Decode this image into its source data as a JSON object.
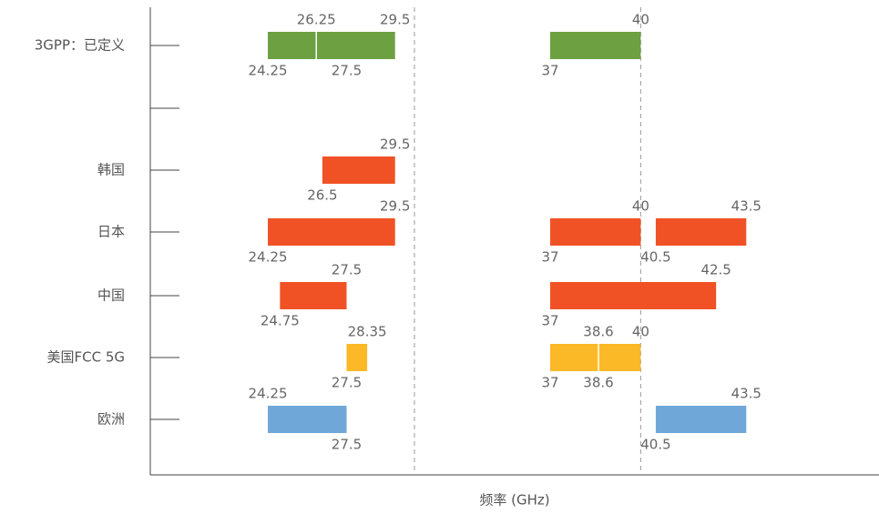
{
  "chart_data": {
    "type": "range-bar",
    "x_label": "频率 (GHz)",
    "x_segments": [
      [
        19.4,
        30.3
      ],
      [
        32.5,
        47.9
      ]
    ],
    "reference_line": 40,
    "categories": [
      "3GPP：已定义",
      null,
      "韩国",
      "日本",
      "中国",
      "美国FCC 5G",
      "欧洲"
    ],
    "rows": [
      {
        "bars": [
          {
            "start": 24.25,
            "end": 29.5,
            "color": "#6ca040",
            "dividers": [
              26.25
            ]
          },
          {
            "start": 37,
            "end": 40,
            "color": "#6ca040"
          }
        ],
        "labels": [
          {
            "value": 26.25,
            "pos": "above"
          },
          {
            "value": 29.5,
            "pos": "above"
          },
          {
            "value": 40,
            "pos": "above"
          },
          {
            "value": 24.25,
            "pos": "below"
          },
          {
            "value": 27.5,
            "pos": "below"
          },
          {
            "value": 37,
            "pos": "below"
          }
        ]
      },
      {
        "bars": [],
        "labels": []
      },
      {
        "bars": [
          {
            "start": 26.5,
            "end": 29.5,
            "color": "#f05225"
          }
        ],
        "labels": [
          {
            "value": 29.5,
            "pos": "above"
          },
          {
            "value": 26.5,
            "pos": "below"
          }
        ]
      },
      {
        "bars": [
          {
            "start": 24.25,
            "end": 29.5,
            "color": "#f05225"
          },
          {
            "start": 37,
            "end": 40,
            "color": "#f05225"
          },
          {
            "start": 40.5,
            "end": 43.5,
            "color": "#f05225"
          }
        ],
        "labels": [
          {
            "value": 29.5,
            "pos": "above"
          },
          {
            "value": 40,
            "pos": "above"
          },
          {
            "value": 43.5,
            "pos": "above"
          },
          {
            "value": 24.25,
            "pos": "below"
          },
          {
            "value": 37,
            "pos": "below"
          },
          {
            "value": 40.5,
            "pos": "below"
          }
        ]
      },
      {
        "bars": [
          {
            "start": 24.75,
            "end": 27.5,
            "color": "#f05225"
          },
          {
            "start": 37,
            "end": 42.5,
            "color": "#f05225"
          }
        ],
        "labels": [
          {
            "value": 27.5,
            "pos": "above"
          },
          {
            "value": 42.5,
            "pos": "above"
          },
          {
            "value": 24.75,
            "pos": "below"
          },
          {
            "value": 37,
            "pos": "below"
          }
        ]
      },
      {
        "bars": [
          {
            "start": 27.5,
            "end": 28.35,
            "color": "#fbb827"
          },
          {
            "start": 37,
            "end": 40,
            "color": "#fbb827",
            "dividers": [
              38.6
            ]
          }
        ],
        "labels": [
          {
            "value": 28.35,
            "pos": "above"
          },
          {
            "value": 38.6,
            "pos": "above"
          },
          {
            "value": 40,
            "pos": "above"
          },
          {
            "value": 27.5,
            "pos": "below"
          },
          {
            "value": 37,
            "pos": "below"
          },
          {
            "value": 38.6,
            "pos": "below"
          }
        ]
      },
      {
        "bars": [
          {
            "start": 24.25,
            "end": 27.5,
            "color": "#6fa8d8"
          },
          {
            "start": 40.5,
            "end": 43.5,
            "color": "#6fa8d8"
          }
        ],
        "labels": [
          {
            "value": 24.25,
            "pos": "above"
          },
          {
            "value": 43.5,
            "pos": "above"
          },
          {
            "value": 27.5,
            "pos": "below"
          },
          {
            "value": 40.5,
            "pos": "below"
          }
        ]
      }
    ]
  }
}
